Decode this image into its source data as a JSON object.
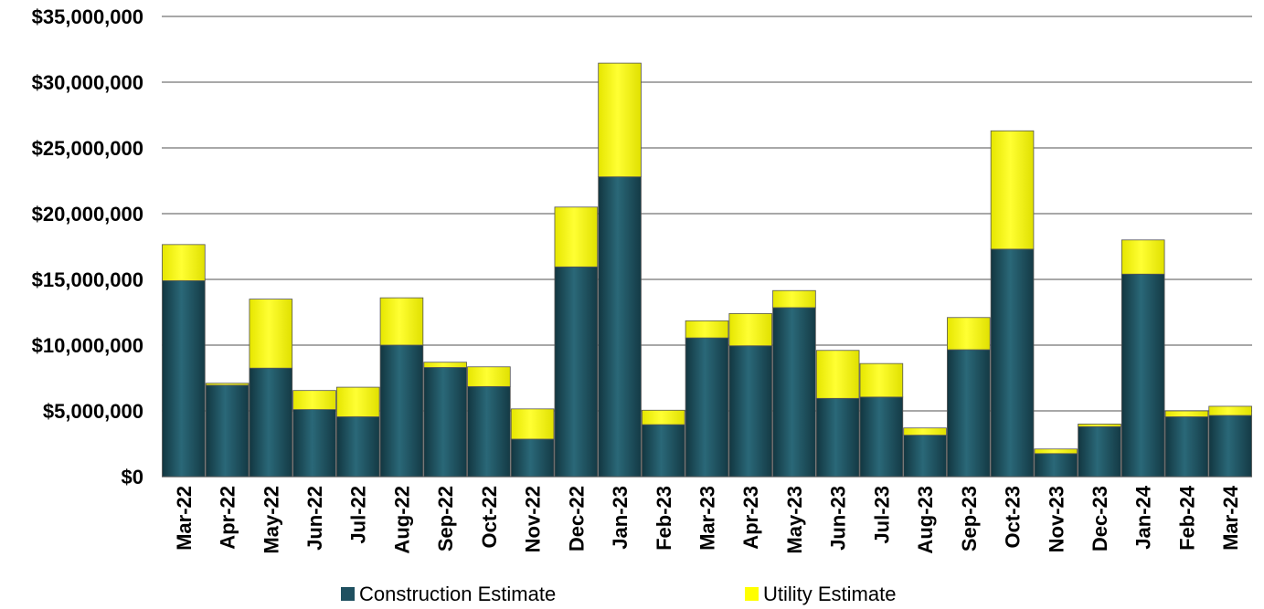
{
  "chart_data": {
    "type": "bar",
    "stacked": true,
    "categories": [
      "Mar-22",
      "Apr-22",
      "May-22",
      "Jun-22",
      "Jul-22",
      "Aug-22",
      "Sep-22",
      "Oct-22",
      "Nov-22",
      "Dec-22",
      "Jan-23",
      "Feb-23",
      "Mar-23",
      "Apr-23",
      "May-23",
      "Jun-23",
      "Jul-23",
      "Aug-23",
      "Sep-23",
      "Oct-23",
      "Nov-23",
      "Dec-23",
      "Jan-24",
      "Feb-24",
      "Mar-24"
    ],
    "series": [
      {
        "name": "Construction Estimate",
        "color": "#1f5060",
        "values": [
          14900000,
          6950000,
          8250000,
          5100000,
          4550000,
          10000000,
          8300000,
          6850000,
          2850000,
          15950000,
          22800000,
          3950000,
          10550000,
          9950000,
          12850000,
          5950000,
          6050000,
          3150000,
          9650000,
          17300000,
          1750000,
          3800000,
          15400000,
          4550000,
          4650000
        ]
      },
      {
        "name": "Utility Estimate",
        "color": "#ffff00",
        "values": [
          2750000,
          150000,
          5250000,
          1450000,
          2250000,
          3600000,
          400000,
          1500000,
          2300000,
          4550000,
          8650000,
          1100000,
          1300000,
          2450000,
          1300000,
          3650000,
          2550000,
          550000,
          2450000,
          9000000,
          350000,
          200000,
          2600000,
          450000,
          700000
        ]
      }
    ],
    "y_tick_labels": [
      "$0",
      "$5,000,000",
      "$10,000,000",
      "$15,000,000",
      "$20,000,000",
      "$25,000,000",
      "$30,000,000",
      "$35,000,000"
    ],
    "ylim": [
      0,
      35000000
    ],
    "y_tick_step": 5000000,
    "grid": true,
    "legend_position": "bottom",
    "xlabel": "",
    "ylabel": "",
    "title": ""
  }
}
